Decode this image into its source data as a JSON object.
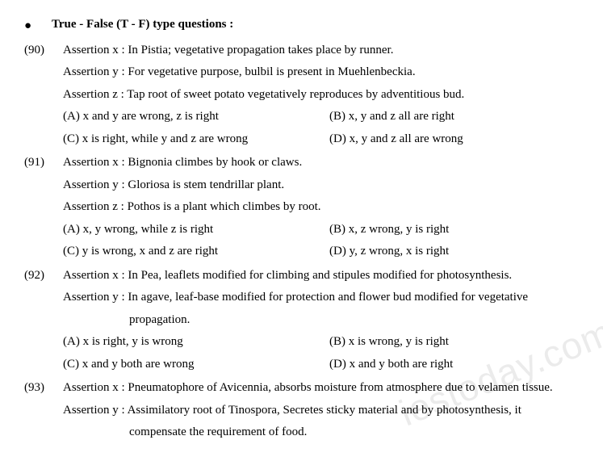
{
  "header": {
    "bullet": "●",
    "title": "True - False (T - F) type questions :"
  },
  "questions": [
    {
      "num": "(90)",
      "lines": [
        "Assertion x : In Pistia; vegetative propagation takes place by runner.",
        "Assertion y : For vegetative purpose, bulbil is present in Muehlenbeckia.",
        "Assertion z : Tap root of sweet potato vegetatively reproduces by adventitious bud."
      ],
      "options": [
        {
          "left": "(A) x and y are wrong, z is right",
          "right": "(B)   x, y and z all are right"
        },
        {
          "left": "(C) x is right, while y and z are wrong",
          "right": "(D)   x, y and z all are wrong"
        }
      ]
    },
    {
      "num": "(91)",
      "lines": [
        "Assertion x : Bignonia climbes by hook or claws.",
        "Assertion y : Gloriosa is stem tendrillar plant.",
        "Assertion z : Pothos is a plant which climbes by root."
      ],
      "options": [
        {
          "left": "(A) x, y wrong, while z is right",
          "right": "(B)   x, z wrong, y is right"
        },
        {
          "left": "(C) y is wrong, x and z are right",
          "right": "(D)   y, z wrong, x is right"
        }
      ]
    },
    {
      "num": "(92)",
      "lines": [
        "Assertion x : In Pea, leaflets modified for climbing and stipules modified for photosynthesis.",
        "Assertion y : In agave, leaf-base modified for protection and flower bud modified for vegetative"
      ],
      "sublines": [
        "propagation."
      ],
      "options": [
        {
          "left": "(A)  x is right, y is wrong",
          "right": "(B)   x is wrong, y is right"
        },
        {
          "left": "(C)  x and y both are wrong",
          "right": "(D)   x and y both are right"
        }
      ]
    },
    {
      "num": "(93)",
      "lines": [
        "Assertion x : Pneumatophore of Avicennia, absorbs moisture from atmosphere due to velamen tissue.",
        "Assertion y : Assimilatory root of Tinospora, Secretes sticky material and by photosynthesis, it"
      ],
      "sublines": [
        "compensate the requirement of food."
      ],
      "options": []
    }
  ],
  "watermark": "iestoday.com"
}
